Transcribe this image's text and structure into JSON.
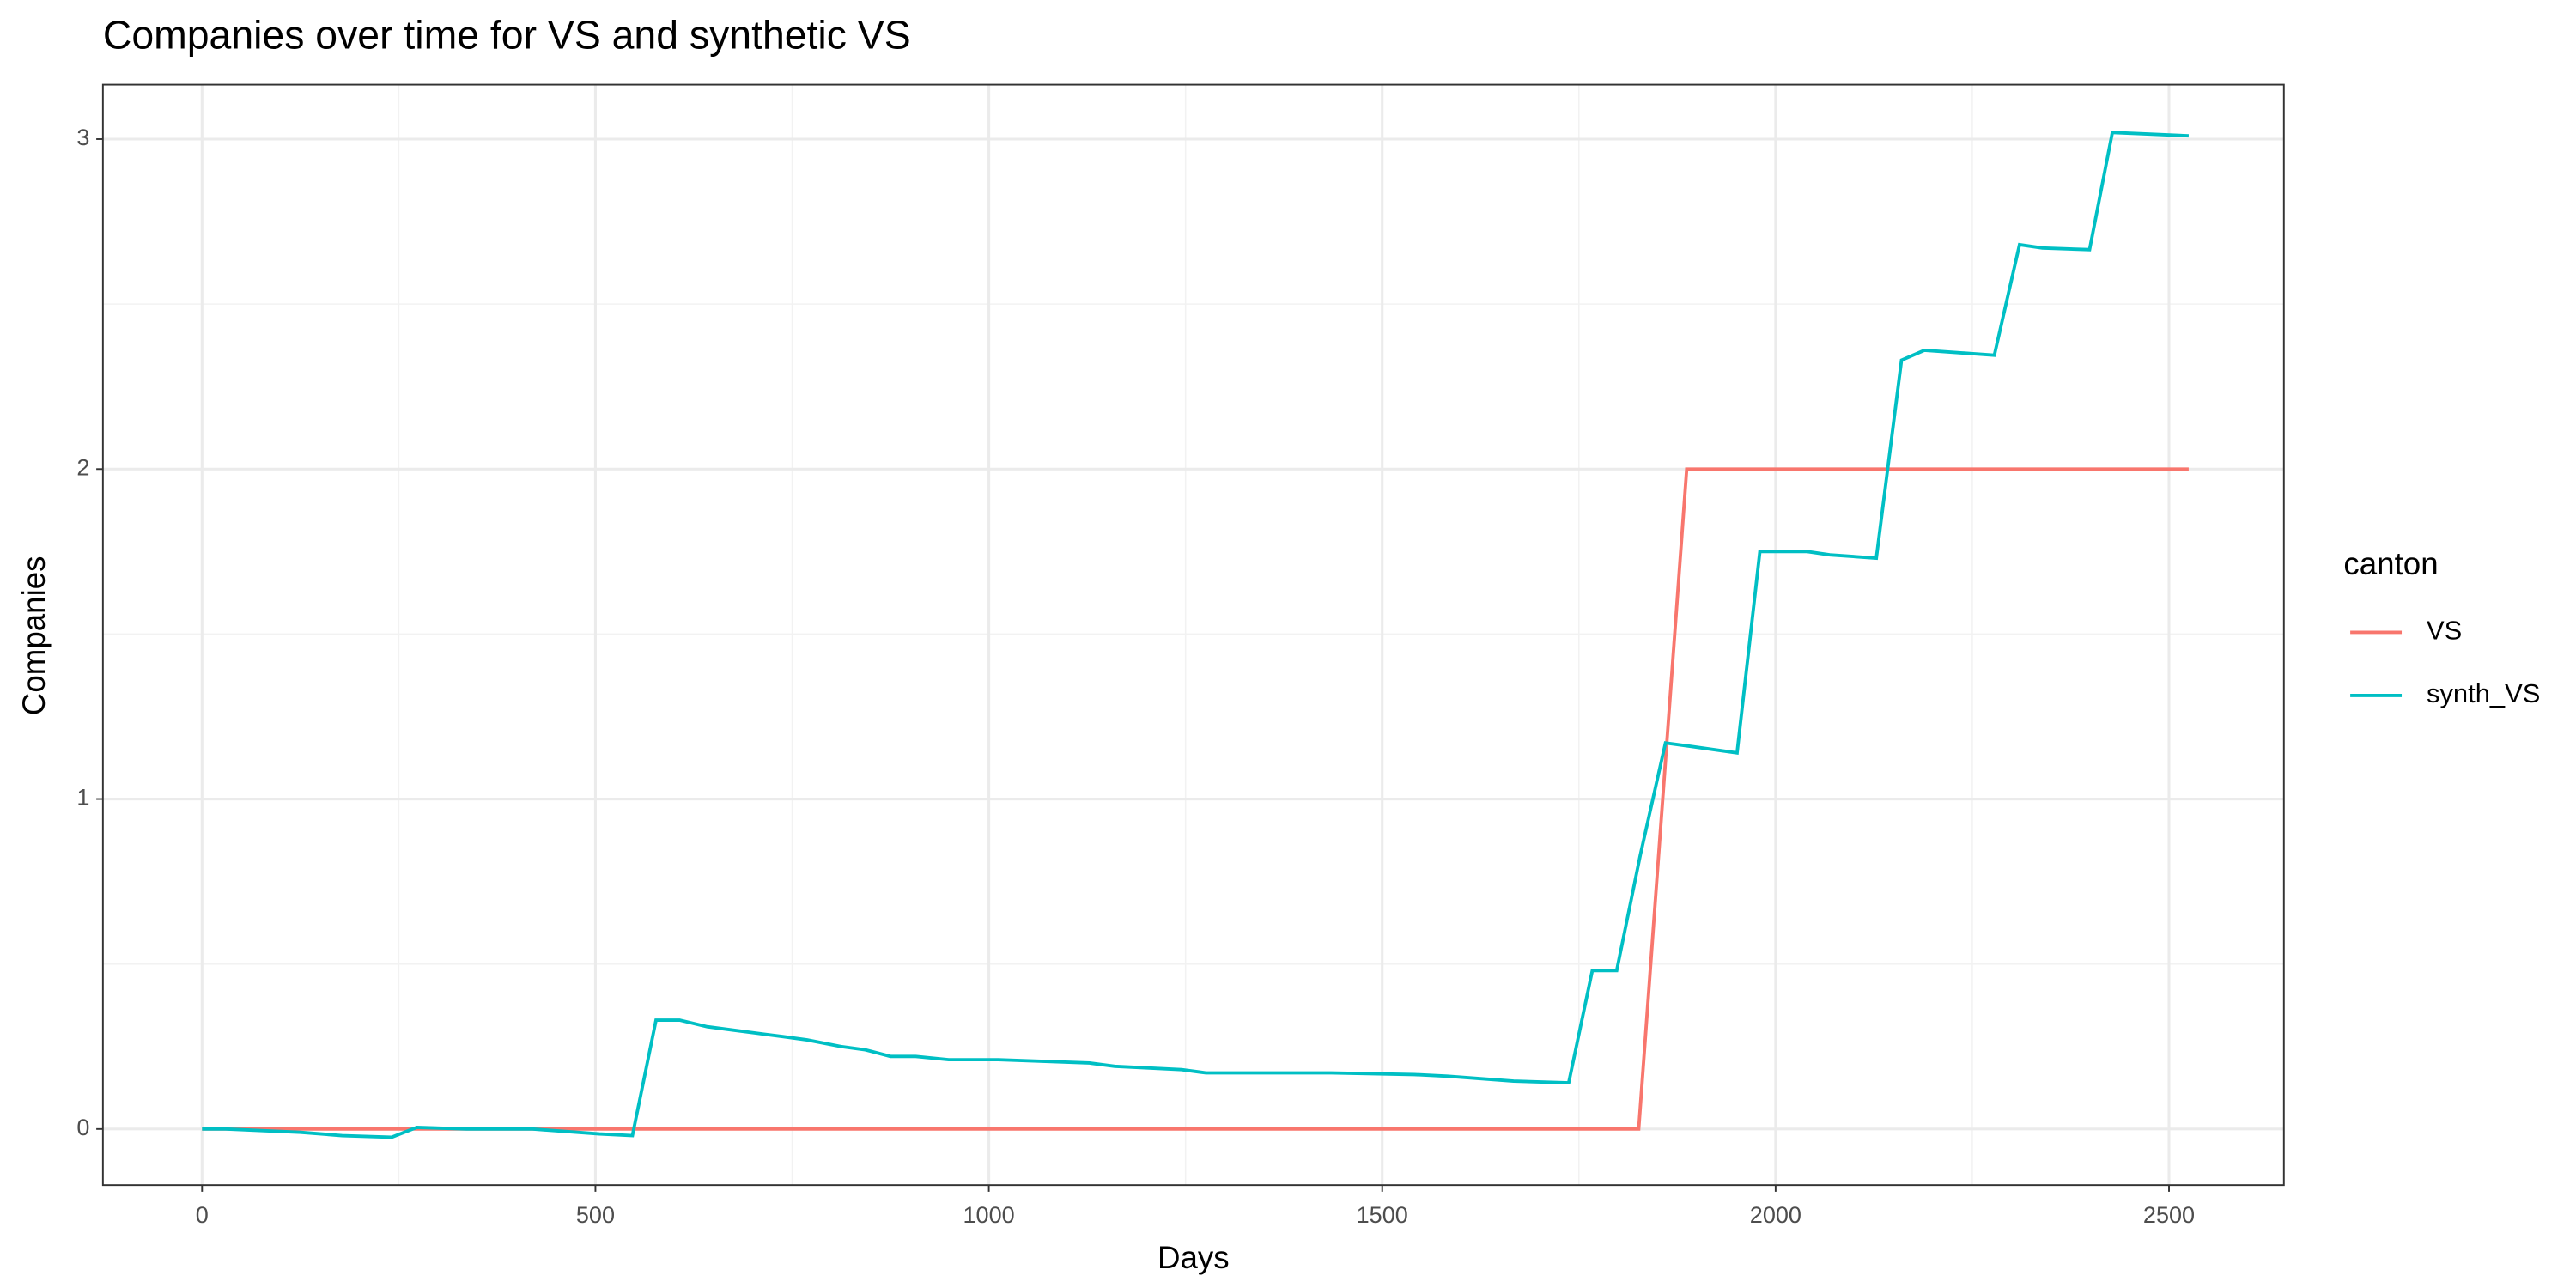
{
  "chart_data": {
    "type": "line",
    "title": "Companies over time for VS and synthetic VS",
    "x_label": "Days",
    "y_label": "Companies",
    "legend_title": "canton",
    "legend_position": "right",
    "grid": true,
    "xlim": [
      -126,
      2646
    ],
    "ylim": [
      -0.17,
      3.165
    ],
    "xticks": [
      0,
      500,
      1000,
      1500,
      2000,
      2500
    ],
    "yticks": [
      0,
      1,
      2,
      3
    ],
    "x_minor_breaks": [
      250,
      750,
      1250,
      1750,
      2250
    ],
    "y_minor_breaks": [
      0.5,
      1.5,
      2.5
    ],
    "series": [
      {
        "name": "VS",
        "color": "#F8766D",
        "x": [
          0,
          1826,
          1887,
          2525
        ],
        "values": [
          0,
          0,
          2,
          2
        ]
      },
      {
        "name": "synth_VS",
        "color": "#00BFC4",
        "x": [
          0,
          30,
          125,
          178,
          241,
          273,
          336,
          420,
          505,
          547,
          577,
          607,
          642,
          674,
          706,
          738,
          769,
          812,
          843,
          875,
          907,
          949,
          1012,
          1128,
          1160,
          1245,
          1276,
          1435,
          1541,
          1583,
          1667,
          1737,
          1767,
          1798,
          1828,
          1860,
          1891,
          1921,
          1951,
          1980,
          2040,
          2069,
          2128,
          2160,
          2189,
          2249,
          2278,
          2310,
          2339,
          2399,
          2428,
          2525
        ],
        "values": [
          0,
          0,
          -0.01,
          -0.02,
          -0.025,
          0.005,
          0,
          0,
          -0.015,
          -0.02,
          0.33,
          0.33,
          0.31,
          0.3,
          0.29,
          0.28,
          0.27,
          0.25,
          0.24,
          0.22,
          0.22,
          0.21,
          0.21,
          0.2,
          0.19,
          0.18,
          0.17,
          0.17,
          0.165,
          0.16,
          0.145,
          0.14,
          0.48,
          0.48,
          0.83,
          1.17,
          1.16,
          1.15,
          1.14,
          1.75,
          1.75,
          1.74,
          1.73,
          2.33,
          2.36,
          2.35,
          2.345,
          2.68,
          2.67,
          2.665,
          3.02,
          3.01
        ]
      }
    ]
  }
}
